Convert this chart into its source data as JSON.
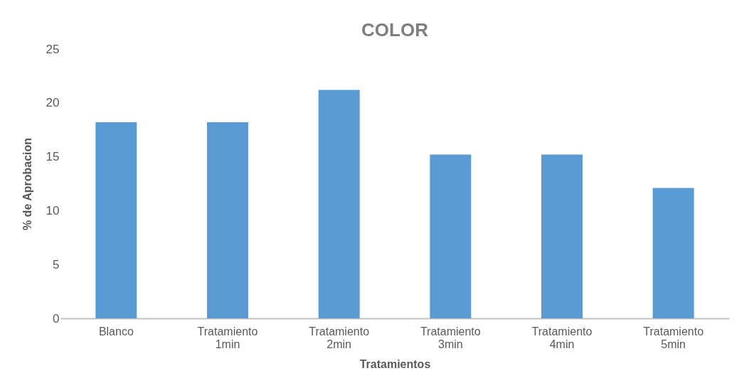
{
  "chart_data": {
    "type": "bar",
    "title": "COLOR",
    "xlabel": "Tratamientos",
    "ylabel": "% de Aprobacion",
    "categories": [
      "Blanco",
      "Tratamiento 1min",
      "Tratamiento 2min",
      "Tratamiento 3min",
      "Tratamiento 4min",
      "Tratamiento 5min"
    ],
    "values": [
      18.2,
      18.2,
      21.2,
      15.2,
      15.2,
      12.1
    ],
    "color": "#5b9bd5",
    "ylim": [
      0,
      25
    ],
    "yticks": [
      0,
      5,
      10,
      15,
      20,
      25
    ],
    "grid": false
  }
}
